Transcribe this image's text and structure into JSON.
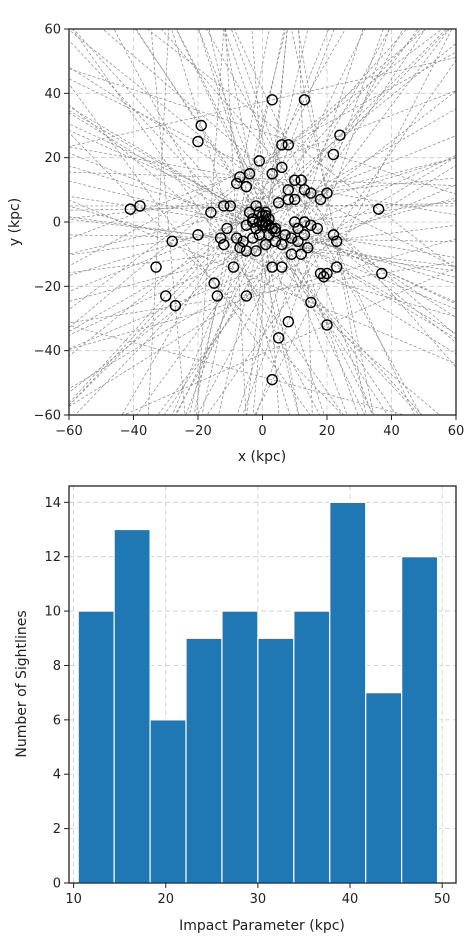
{
  "chart_data": [
    {
      "type": "scatter",
      "xlabel": "x (kpc)",
      "ylabel": "y (kpc)",
      "xlim": [
        -60,
        60
      ],
      "ylim": [
        -60,
        60
      ],
      "xticks": [
        -60,
        -40,
        -20,
        0,
        20,
        40,
        60
      ],
      "yticks": [
        -60,
        -40,
        -20,
        0,
        20,
        40,
        60
      ],
      "grid": true,
      "marker": "open-circle",
      "marker_color": "#000000",
      "sightline_color": "#888888",
      "points": [
        [
          3,
          38
        ],
        [
          13,
          38
        ],
        [
          -19,
          30
        ],
        [
          -20,
          25
        ],
        [
          24,
          27
        ],
        [
          6,
          24
        ],
        [
          8,
          24
        ],
        [
          22,
          21
        ],
        [
          -1,
          19
        ],
        [
          -5,
          11
        ],
        [
          -8,
          12
        ],
        [
          -7,
          14
        ],
        [
          -4,
          15
        ],
        [
          3,
          15
        ],
        [
          6,
          17
        ],
        [
          12,
          13
        ],
        [
          10,
          13
        ],
        [
          13,
          10
        ],
        [
          8,
          10
        ],
        [
          15,
          9
        ],
        [
          18,
          7
        ],
        [
          20,
          9
        ],
        [
          5,
          6
        ],
        [
          8,
          7
        ],
        [
          10,
          7
        ],
        [
          -2,
          5
        ],
        [
          -1,
          3
        ],
        [
          1,
          3
        ],
        [
          0,
          2
        ],
        [
          2,
          1
        ],
        [
          -3,
          0
        ],
        [
          -1,
          0
        ],
        [
          0,
          -1
        ],
        [
          1,
          0
        ],
        [
          3,
          -2
        ],
        [
          4,
          -3
        ],
        [
          2,
          -4
        ],
        [
          -1,
          -4
        ],
        [
          -3,
          -5
        ],
        [
          -6,
          -6
        ],
        [
          -8,
          -5
        ],
        [
          -7,
          -8
        ],
        [
          -5,
          -9
        ],
        [
          -2,
          -9
        ],
        [
          1,
          -7
        ],
        [
          4,
          -6
        ],
        [
          6,
          -7
        ],
        [
          9,
          -5
        ],
        [
          11,
          -6
        ],
        [
          13,
          -4
        ],
        [
          14,
          -8
        ],
        [
          12,
          -10
        ],
        [
          9,
          -10
        ],
        [
          6,
          -14
        ],
        [
          3,
          -14
        ],
        [
          -9,
          -14
        ],
        [
          -12,
          -7
        ],
        [
          -13,
          -5
        ],
        [
          -11,
          -2
        ],
        [
          -16,
          3
        ],
        [
          -12,
          5
        ],
        [
          -10,
          5
        ],
        [
          -4,
          3
        ],
        [
          1,
          -1
        ],
        [
          15,
          -1
        ],
        [
          13,
          0
        ],
        [
          22,
          -4
        ],
        [
          23,
          -6
        ],
        [
          23,
          -14
        ],
        [
          19,
          -17
        ],
        [
          20,
          -16
        ],
        [
          18,
          -16
        ],
        [
          15,
          -25
        ],
        [
          20,
          -32
        ],
        [
          8,
          -31
        ],
        [
          5,
          -36
        ],
        [
          3,
          -49
        ],
        [
          -5,
          -23
        ],
        [
          -14,
          -23
        ],
        [
          -15,
          -19
        ],
        [
          -20,
          -4
        ],
        [
          -28,
          -6
        ],
        [
          -33,
          -14
        ],
        [
          -38,
          5
        ],
        [
          -41,
          4
        ],
        [
          -30,
          -23
        ],
        [
          -27,
          -26
        ],
        [
          36,
          4
        ],
        [
          37,
          -16
        ],
        [
          10,
          0
        ],
        [
          -3,
          1
        ],
        [
          0,
          0
        ],
        [
          1,
          2
        ],
        [
          2,
          -1
        ],
        [
          4,
          -2
        ],
        [
          -2,
          -2
        ],
        [
          7,
          -4
        ],
        [
          11,
          -2
        ],
        [
          17,
          -2
        ],
        [
          -5,
          -1
        ]
      ]
    },
    {
      "type": "bar",
      "xlabel": "Impact Parameter (kpc)",
      "ylabel": "Number of Sightlines",
      "xlim": [
        9.5,
        51.5
      ],
      "ylim": [
        0,
        14.6
      ],
      "xticks": [
        10,
        20,
        30,
        40,
        50
      ],
      "yticks": [
        0,
        2,
        4,
        6,
        8,
        10,
        12,
        14
      ],
      "grid": true,
      "bar_color": "#1f77b4",
      "bin_edges": [
        10.5,
        14.4,
        18.3,
        22.2,
        26.1,
        30.0,
        33.9,
        37.8,
        41.7,
        45.6,
        49.5
      ],
      "values": [
        10,
        13,
        6,
        9,
        10,
        9,
        10,
        14,
        7,
        12
      ]
    }
  ]
}
